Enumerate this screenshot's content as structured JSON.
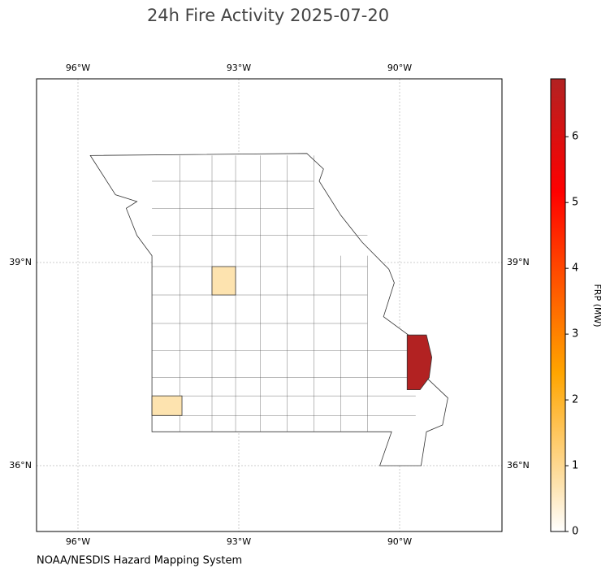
{
  "title": "24h Fire Activity 2025-07-20",
  "map": {
    "lon_ticks": [
      {
        "value": -96,
        "label": "96°W"
      },
      {
        "value": -93,
        "label": "93°W"
      },
      {
        "value": -90,
        "label": "90°W"
      }
    ],
    "lat_ticks": [
      {
        "value": 39,
        "label": "39°N"
      },
      {
        "value": 36,
        "label": "36°N"
      }
    ],
    "fires": [
      6.88,
      0.7,
      0.7
    ]
  },
  "colorbar": {
    "label": "FRP (MW)",
    "lim": [
      0,
      6.88
    ],
    "ticks": [
      0,
      1,
      2,
      3,
      4,
      5,
      6
    ]
  },
  "source": "NOAA/NESDIS Hazard Mapping System"
}
